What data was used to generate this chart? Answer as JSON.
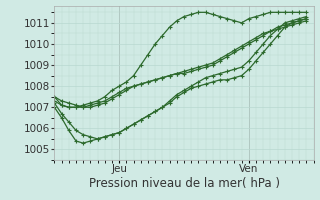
{
  "xlabel": "Pression niveau de la mer( hPa )",
  "background_color": "#d0eae4",
  "grid_color": "#b8d8d0",
  "line_color": "#2d6a2d",
  "ylim": [
    1004.5,
    1011.8
  ],
  "yticks": [
    1005,
    1006,
    1007,
    1008,
    1009,
    1010,
    1011
  ],
  "xlim": [
    0,
    36
  ],
  "x_jeu": 9,
  "x_ven": 27,
  "series": [
    [
      1007.5,
      1007.1,
      1007.0,
      1007.0,
      1007.1,
      1007.2,
      1007.3,
      1007.5,
      1007.8,
      1008.0,
      1008.2,
      1008.5,
      1009.0,
      1009.5,
      1010.0,
      1010.4,
      1010.8,
      1011.1,
      1011.3,
      1011.4,
      1011.5,
      1011.5,
      1011.4,
      1011.3,
      1011.2,
      1011.1,
      1011.0,
      1011.2,
      1011.3,
      1011.4,
      1011.5,
      1011.5,
      1011.5,
      1011.5,
      1011.5,
      1011.5
    ],
    [
      1007.2,
      1006.7,
      1006.3,
      1005.9,
      1005.7,
      1005.6,
      1005.5,
      1005.6,
      1005.7,
      1005.8,
      1006.0,
      1006.2,
      1006.4,
      1006.6,
      1006.8,
      1007.0,
      1007.3,
      1007.6,
      1007.8,
      1008.0,
      1008.2,
      1008.4,
      1008.5,
      1008.6,
      1008.7,
      1008.8,
      1008.9,
      1009.2,
      1009.6,
      1010.0,
      1010.4,
      1010.7,
      1011.0,
      1011.1,
      1011.2,
      1011.3
    ],
    [
      1007.0,
      1006.5,
      1005.9,
      1005.4,
      1005.3,
      1005.4,
      1005.5,
      1005.6,
      1005.7,
      1005.8,
      1006.0,
      1006.2,
      1006.4,
      1006.6,
      1006.8,
      1007.0,
      1007.2,
      1007.5,
      1007.7,
      1007.9,
      1008.0,
      1008.1,
      1008.2,
      1008.3,
      1008.3,
      1008.4,
      1008.5,
      1008.8,
      1009.2,
      1009.6,
      1010.0,
      1010.4,
      1010.8,
      1011.0,
      1011.1,
      1011.2
    ],
    [
      1007.3,
      1007.1,
      1007.0,
      1007.0,
      1007.0,
      1007.1,
      1007.2,
      1007.3,
      1007.5,
      1007.7,
      1007.9,
      1008.0,
      1008.1,
      1008.2,
      1008.3,
      1008.4,
      1008.5,
      1008.6,
      1008.6,
      1008.7,
      1008.8,
      1008.9,
      1009.0,
      1009.2,
      1009.4,
      1009.6,
      1009.8,
      1010.0,
      1010.2,
      1010.4,
      1010.6,
      1010.8,
      1010.9,
      1011.0,
      1011.1,
      1011.2
    ],
    [
      1007.5,
      1007.3,
      1007.2,
      1007.1,
      1007.0,
      1007.0,
      1007.1,
      1007.2,
      1007.4,
      1007.6,
      1007.8,
      1008.0,
      1008.1,
      1008.2,
      1008.3,
      1008.4,
      1008.5,
      1008.6,
      1008.7,
      1008.8,
      1008.9,
      1009.0,
      1009.1,
      1009.3,
      1009.5,
      1009.7,
      1009.9,
      1010.1,
      1010.3,
      1010.5,
      1010.6,
      1010.7,
      1010.8,
      1010.9,
      1011.0,
      1011.1
    ]
  ],
  "n_points": 36,
  "marker": "+",
  "marker_size": 3.5,
  "line_width": 0.9,
  "font_size_label": 8.5,
  "font_size_tick": 7.5
}
